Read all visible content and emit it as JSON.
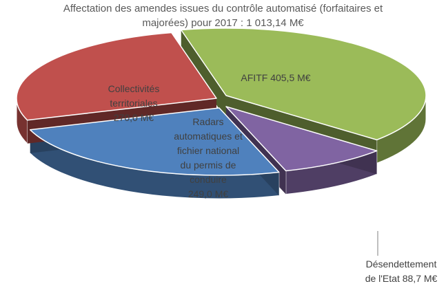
{
  "chart_data": {
    "type": "pie",
    "title_lines": [
      "Affectation des amendes issues du contrôle automatisé (forfaitaires et",
      "majorées) pour 2017 : 1 013,14 M€"
    ],
    "total": 1013.14,
    "slices": [
      {
        "label_lines": [
          "AFITF 405,5 M€"
        ],
        "value": 405.5,
        "color": "#9BBB59"
      },
      {
        "label_lines": [
          "Désendettement",
          "de l'Etat 88,7 M€"
        ],
        "value": 88.7,
        "color": "#8064A2"
      },
      {
        "label_lines": [
          "Radars",
          "automatiques et",
          "fichier national",
          "du permis de",
          "conduire",
          "249,0 M€"
        ],
        "value": 249.0,
        "color": "#4F81BD"
      },
      {
        "label_lines": [
          "Collectivités",
          "territoriales",
          "270,0  M€"
        ],
        "value": 270.0,
        "color": "#C0504D"
      }
    ],
    "style": "3d-exploded-pie",
    "legend": "none",
    "label_color": "#404040"
  }
}
